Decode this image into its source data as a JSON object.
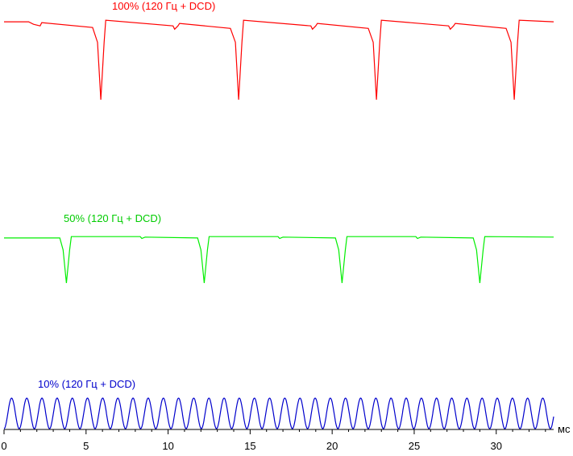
{
  "chart_data": {
    "type": "line",
    "xlabel": "мс",
    "xlim": [
      0,
      33.5
    ],
    "x_ticks": [
      0,
      5,
      10,
      15,
      20,
      25,
      30
    ],
    "series": [
      {
        "name": "100% (120 Гц + DCD)",
        "color": "#ff0000",
        "points": [
          [
            0,
            0.95
          ],
          [
            1.5,
            0.95
          ],
          [
            1.8,
            0.92
          ],
          [
            2.2,
            0.9
          ],
          [
            2.3,
            0.94
          ],
          [
            5.4,
            0.88
          ],
          [
            5.7,
            0.7
          ],
          [
            5.9,
            0.0
          ],
          [
            6.1,
            0.7
          ],
          [
            6.2,
            0.97
          ],
          [
            10.3,
            0.9
          ],
          [
            10.4,
            0.86
          ],
          [
            10.6,
            0.9
          ],
          [
            10.7,
            0.93
          ],
          [
            13.8,
            0.87
          ],
          [
            14.1,
            0.7
          ],
          [
            14.3,
            0.0
          ],
          [
            14.5,
            0.7
          ],
          [
            14.6,
            0.97
          ],
          [
            18.7,
            0.9
          ],
          [
            18.8,
            0.86
          ],
          [
            19.0,
            0.9
          ],
          [
            19.1,
            0.93
          ],
          [
            22.2,
            0.87
          ],
          [
            22.5,
            0.7
          ],
          [
            22.7,
            0.0
          ],
          [
            22.9,
            0.7
          ],
          [
            23.0,
            0.97
          ],
          [
            27.1,
            0.9
          ],
          [
            27.2,
            0.86
          ],
          [
            27.4,
            0.9
          ],
          [
            27.5,
            0.93
          ],
          [
            30.6,
            0.87
          ],
          [
            30.9,
            0.7
          ],
          [
            31.1,
            0.0
          ],
          [
            31.3,
            0.7
          ],
          [
            31.4,
            0.97
          ],
          [
            33.5,
            0.95
          ]
        ]
      },
      {
        "name": "50% (120 Гц + DCD)",
        "color": "#00ee00",
        "points": [
          [
            0,
            0.95
          ],
          [
            3.4,
            0.95
          ],
          [
            3.6,
            0.7
          ],
          [
            3.8,
            0.0
          ],
          [
            4.0,
            0.7
          ],
          [
            4.1,
            0.98
          ],
          [
            8.3,
            0.98
          ],
          [
            8.4,
            0.94
          ],
          [
            8.6,
            0.97
          ],
          [
            11.8,
            0.95
          ],
          [
            12.0,
            0.7
          ],
          [
            12.2,
            0.0
          ],
          [
            12.4,
            0.7
          ],
          [
            12.5,
            0.98
          ],
          [
            16.7,
            0.98
          ],
          [
            16.8,
            0.94
          ],
          [
            17.0,
            0.97
          ],
          [
            20.2,
            0.95
          ],
          [
            20.4,
            0.7
          ],
          [
            20.6,
            0.0
          ],
          [
            20.8,
            0.7
          ],
          [
            20.9,
            0.98
          ],
          [
            25.1,
            0.98
          ],
          [
            25.2,
            0.94
          ],
          [
            25.4,
            0.97
          ],
          [
            28.6,
            0.95
          ],
          [
            28.8,
            0.7
          ],
          [
            29.0,
            0.0
          ],
          [
            29.2,
            0.7
          ],
          [
            29.3,
            0.98
          ],
          [
            33.5,
            0.97
          ]
        ]
      },
      {
        "name": "10% (120 Гц + DCD)",
        "color": "#0000cc",
        "waveform": "periodic",
        "period_ms": 0.925,
        "x_start": 0,
        "x_end": 33.5,
        "min": 0.0,
        "max": 1.0
      }
    ]
  }
}
